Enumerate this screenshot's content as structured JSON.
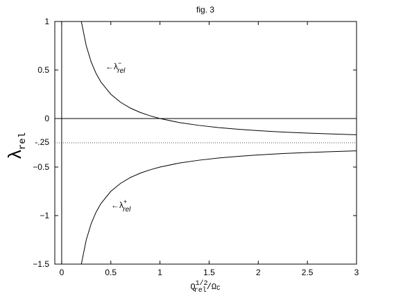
{
  "chart_data": {
    "type": "line",
    "title": "fig. 3",
    "ylabel": {
      "main": "λ",
      "sub": "rel"
    },
    "xlabel": {
      "main": "Q",
      "sub": "rel",
      "sup": "1/2",
      "rest": "/Ω",
      "rest_sub": "C"
    },
    "x": [
      0.2,
      0.25,
      0.3,
      0.35,
      0.4,
      0.5,
      0.6,
      0.7,
      0.8,
      0.9,
      1,
      1.2,
      1.4,
      1.6,
      1.8,
      2,
      2.25,
      2.5,
      2.75,
      3
    ],
    "series": [
      {
        "name": "λ−",
        "color": "#000000",
        "values": [
          1.0,
          0.75,
          0.583,
          0.464,
          0.375,
          0.25,
          0.167,
          0.107,
          0.0625,
          0.028,
          0,
          -0.042,
          -0.071,
          -0.094,
          -0.111,
          -0.125,
          -0.139,
          -0.15,
          -0.159,
          -0.167
        ]
      },
      {
        "name": "λ+",
        "color": "#000000",
        "values": [
          -1.5,
          -1.25,
          -1.083,
          -0.964,
          -0.875,
          -0.75,
          -0.667,
          -0.607,
          -0.5625,
          -0.528,
          -0.5,
          -0.458,
          -0.429,
          -0.406,
          -0.389,
          -0.375,
          -0.361,
          -0.35,
          -0.341,
          -0.333
        ]
      }
    ],
    "annotations": [
      {
        "text": "←λ",
        "sup": "−",
        "sub": "rel"
      },
      {
        "text": "←λ",
        "sup": "+",
        "sub": "rel"
      }
    ],
    "hlines": [
      {
        "value": 0,
        "style": "solid"
      },
      {
        "value": -0.25,
        "style": "dotted",
        "label": "-.25"
      }
    ],
    "vlines": [
      {
        "value": 0,
        "style": "solid"
      }
    ],
    "xlim": [
      -0.07,
      3
    ],
    "ylim": [
      -1.5,
      1
    ],
    "xticks": [
      0,
      0.5,
      1,
      1.5,
      2,
      2.5,
      3
    ],
    "yticks": [
      {
        "value": -1.5,
        "label": "−1.5"
      },
      {
        "value": -1,
        "label": "−1"
      },
      {
        "value": -0.5,
        "label": "−0.5"
      },
      0,
      0.5,
      1
    ],
    "grid": false
  }
}
